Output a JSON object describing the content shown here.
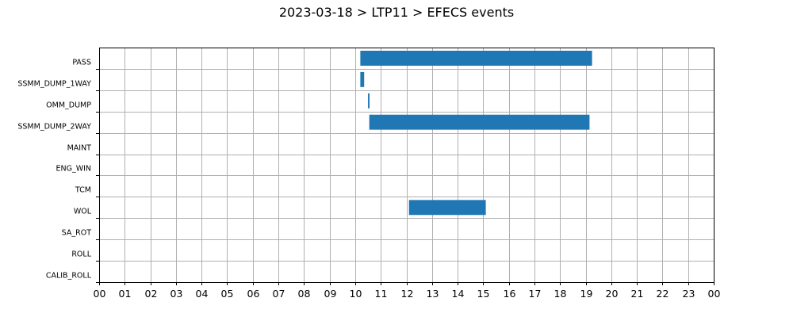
{
  "chart_data": {
    "type": "gantt",
    "title": "2023-03-18 > LTP11 > EFECS events",
    "xlabel": "",
    "ylabel": "",
    "xlim": [
      0,
      24
    ],
    "x_unit": "hour of day",
    "xtick_labels": [
      "00",
      "01",
      "02",
      "03",
      "04",
      "05",
      "06",
      "07",
      "08",
      "09",
      "10",
      "11",
      "12",
      "13",
      "14",
      "15",
      "16",
      "17",
      "18",
      "19",
      "20",
      "21",
      "22",
      "23",
      "00"
    ],
    "categories": [
      "PASS",
      "SSMM_DUMP_1WAY",
      "OMM_DUMP",
      "SSMM_DUMP_2WAY",
      "MAINT",
      "ENG_WIN",
      "TCM",
      "WOL",
      "SA_ROT",
      "ROLL",
      "CALIB_ROLL"
    ],
    "events": [
      {
        "category": "PASS",
        "start": 10.2,
        "end": 19.25
      },
      {
        "category": "SSMM_DUMP_1WAY",
        "start": 10.2,
        "end": 10.35
      },
      {
        "category": "OMM_DUMP",
        "start": 10.5,
        "end": 10.56
      },
      {
        "category": "SSMM_DUMP_2WAY",
        "start": 10.55,
        "end": 19.15
      },
      {
        "category": "WOL",
        "start": 12.1,
        "end": 15.1
      }
    ],
    "grid": true,
    "bar_color": "#1f77b4"
  }
}
